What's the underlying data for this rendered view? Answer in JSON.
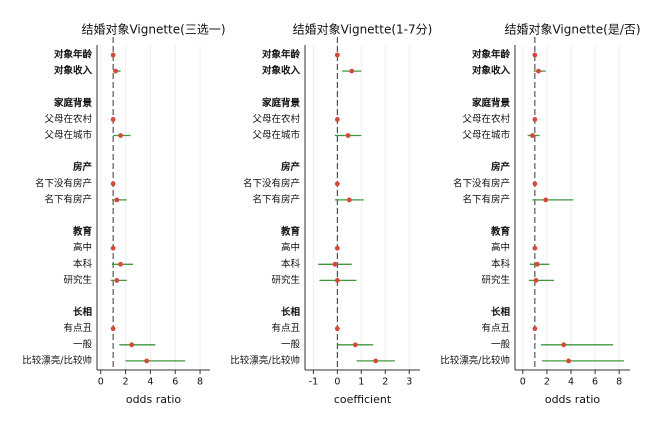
{
  "chart_data": [
    {
      "type": "forest",
      "title": "结婚对象Vignette(三选一)",
      "x_label": "odds ratio",
      "categories": [
        "对象年龄",
        "对象收入",
        null,
        "家庭背景",
        "父母在农村",
        "父母在城市",
        null,
        "房产",
        "名下没有房产",
        "名下有房产",
        null,
        "教育",
        "高中",
        "本科",
        "研究生",
        null,
        "长相",
        "有点丑",
        "一般",
        "比较漂亮/比较帅"
      ],
      "bold": [
        true,
        true,
        false,
        true,
        false,
        false,
        false,
        true,
        false,
        false,
        false,
        true,
        false,
        false,
        false,
        false,
        true,
        false,
        false,
        false
      ],
      "values": [
        1,
        1.2,
        null,
        null,
        1,
        1.6,
        null,
        null,
        1,
        1.3,
        null,
        null,
        1,
        1.6,
        1.3,
        null,
        null,
        1,
        2.5,
        3.7
      ],
      "ci_low": [
        0.95,
        1.0,
        null,
        null,
        null,
        1.0,
        null,
        null,
        null,
        0.9,
        null,
        null,
        null,
        0.9,
        0.8,
        null,
        null,
        null,
        1.5,
        2.0
      ],
      "ci_high": [
        1.05,
        1.6,
        null,
        null,
        null,
        2.4,
        null,
        null,
        null,
        2.1,
        null,
        null,
        null,
        2.6,
        2.1,
        null,
        null,
        null,
        4.4,
        6.8
      ],
      "xlim": [
        -0.3,
        8.8
      ],
      "xticks": [
        0,
        2,
        4,
        6,
        8
      ],
      "refline": 1,
      "grid": true,
      "point_color": "#d6483a",
      "ci_color": "#3f9a3f"
    },
    {
      "type": "forest",
      "title": "结婚对象Vignette(1-7分)",
      "x_label": "coefficient",
      "categories": [
        "对象年龄",
        "对象收入",
        null,
        "家庭背景",
        "父母在农村",
        "父母在城市",
        null,
        "房产",
        "名下没有房产",
        "名下有房产",
        null,
        "教育",
        "高中",
        "本科",
        "研究生",
        null,
        "长相",
        "有点丑",
        "一般",
        "比较漂亮/比较帅"
      ],
      "bold": [
        true,
        true,
        false,
        true,
        false,
        false,
        false,
        true,
        false,
        false,
        false,
        true,
        false,
        false,
        false,
        false,
        true,
        false,
        false,
        false
      ],
      "values": [
        0,
        0.6,
        null,
        null,
        0,
        0.45,
        null,
        null,
        0,
        0.5,
        null,
        null,
        0,
        -0.1,
        0,
        null,
        null,
        0,
        0.75,
        1.6
      ],
      "ci_low": [
        -0.05,
        0.2,
        null,
        null,
        null,
        -0.1,
        null,
        null,
        null,
        -0.1,
        null,
        null,
        null,
        -0.8,
        -0.75,
        null,
        null,
        null,
        0,
        0.8
      ],
      "ci_high": [
        0.05,
        1.0,
        null,
        null,
        null,
        1.0,
        null,
        null,
        null,
        1.1,
        null,
        null,
        null,
        0.6,
        0.8,
        null,
        null,
        null,
        1.5,
        2.4
      ],
      "xlim": [
        -1.35,
        3.45
      ],
      "xticks": [
        -1,
        0,
        1,
        2,
        3
      ],
      "refline": 0,
      "grid": true,
      "point_color": "#d6483a",
      "ci_color": "#3f9a3f"
    },
    {
      "type": "forest",
      "title": "结婚对象Vignette(是/否)",
      "x_label": "odds ratio",
      "categories": [
        "对象年龄",
        "对象收入",
        null,
        "家庭背景",
        "父母在农村",
        "父母在城市",
        null,
        "房产",
        "名下没有房产",
        "名下有房产",
        null,
        "教育",
        "高中",
        "本科",
        "研究生",
        null,
        "长相",
        "有点丑",
        "一般",
        "比较漂亮/比较帅"
      ],
      "bold": [
        true,
        true,
        false,
        true,
        false,
        false,
        false,
        true,
        false,
        false,
        false,
        true,
        false,
        false,
        false,
        false,
        true,
        false,
        false,
        false
      ],
      "values": [
        1,
        1.3,
        null,
        null,
        1,
        0.8,
        null,
        null,
        1,
        1.9,
        null,
        null,
        1,
        1.2,
        1.1,
        null,
        null,
        1,
        3.4,
        3.8
      ],
      "ci_low": [
        0.95,
        0.9,
        null,
        null,
        null,
        0.4,
        null,
        null,
        null,
        0.8,
        null,
        null,
        null,
        0.6,
        0.5,
        null,
        null,
        null,
        1.5,
        1.6
      ],
      "ci_high": [
        1.05,
        1.9,
        null,
        null,
        null,
        1.4,
        null,
        null,
        null,
        4.2,
        null,
        null,
        null,
        2.2,
        2.6,
        null,
        null,
        null,
        7.5,
        8.4
      ],
      "xlim": [
        -0.65,
        8.9
      ],
      "xticks": [
        0,
        2,
        4,
        6,
        8
      ],
      "refline": 1,
      "grid": true,
      "point_color": "#d6483a",
      "ci_color": "#3f9a3f"
    }
  ]
}
